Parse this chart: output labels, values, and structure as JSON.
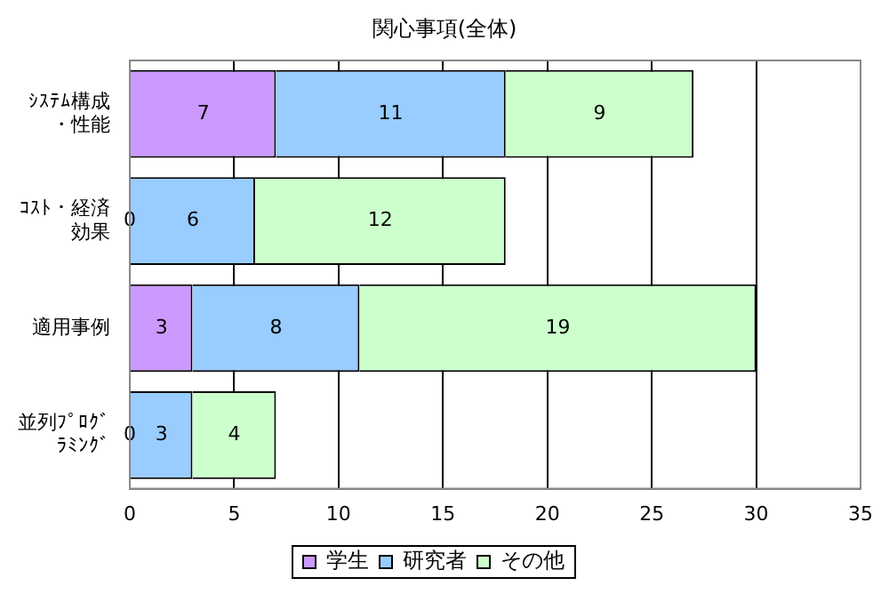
{
  "chart_data": {
    "type": "bar",
    "title": "関心事項(全体)",
    "orientation": "horizontal",
    "stacked": true,
    "categories": [
      "ｼｽﾃﾑ構成・性能",
      "ｺｽﾄ・経済効果",
      "適用事例",
      "並列ﾌﾟﾛｸﾞﾗﾐﾝｸﾞ"
    ],
    "series": [
      {
        "name": "学生",
        "color": "#cc99ff",
        "values": [
          7,
          0,
          3,
          0
        ],
        "value_labels": [
          "7",
          null,
          "3",
          null
        ]
      },
      {
        "name": "研究者",
        "color": "#99ccff",
        "values": [
          11,
          6,
          8,
          3
        ],
        "value_labels": [
          "11",
          "6",
          "8",
          "3"
        ]
      },
      {
        "name": "その他",
        "color": "#ccffcc",
        "values": [
          9,
          12,
          19,
          4
        ],
        "value_labels": [
          "9",
          "12",
          "19",
          "4"
        ]
      }
    ],
    "xlim": [
      0,
      35
    ],
    "xticks": [
      0,
      5,
      10,
      15,
      20,
      25,
      30,
      35
    ],
    "grid": "x",
    "legend": "bottom",
    "annotations": [
      {
        "text": "0",
        "x": 0,
        "y": "ｺｽﾄ・経済効果"
      },
      {
        "text": "0",
        "x": 0,
        "y": "並列ﾌﾟﾛｸﾞﾗﾐﾝｸﾞ"
      }
    ]
  }
}
